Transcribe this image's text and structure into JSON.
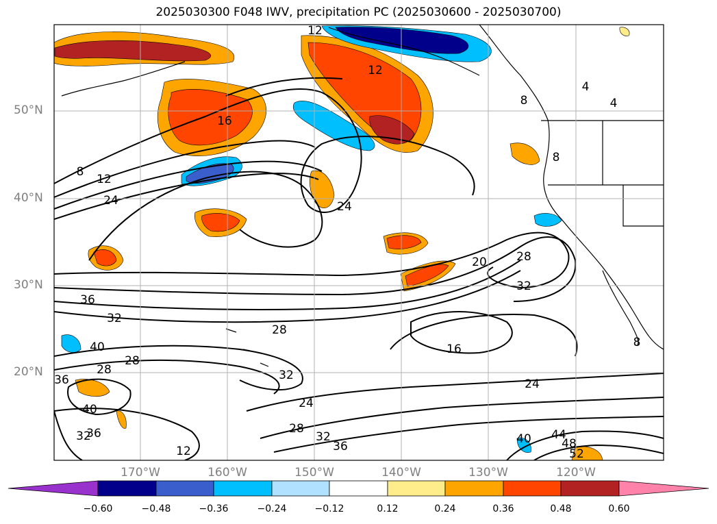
{
  "title": "2025030300 F048 IWV, precipitation PC (2025030600 - 2025030700)",
  "lat_labels": [
    "50°N",
    "40°N",
    "30°N",
    "20°N"
  ],
  "lon_labels": [
    "170°W",
    "160°W",
    "150°W",
    "140°W",
    "130°W",
    "120°W"
  ],
  "colorbar": {
    "ticks": [
      "−0.60",
      "−0.48",
      "−0.36",
      "−0.24",
      "−0.12",
      "0.12",
      "0.24",
      "0.36",
      "0.48",
      "0.60"
    ],
    "colors": [
      "#9932CC",
      "#00008B",
      "#3A5FCD",
      "#00BFFF",
      "#B0E2FF",
      "#FFFFFF",
      "#FFEC8B",
      "#FFA500",
      "#FF4500",
      "#B22222",
      "#FF82AB"
    ]
  },
  "contour_labels": [
    "12",
    "12",
    "16",
    "8",
    "12",
    "24",
    "24",
    "20",
    "28",
    "32",
    "36",
    "32",
    "28",
    "16",
    "24",
    "40",
    "28",
    "28",
    "36",
    "32",
    "24",
    "40",
    "36",
    "32",
    "28",
    "32",
    "36",
    "40",
    "44",
    "48",
    "52",
    "4",
    "4",
    "8",
    "8",
    "8"
  ],
  "colors": {
    "contour": "#000000",
    "grid": "#b0b0b0",
    "label": "#7f7f7f"
  }
}
